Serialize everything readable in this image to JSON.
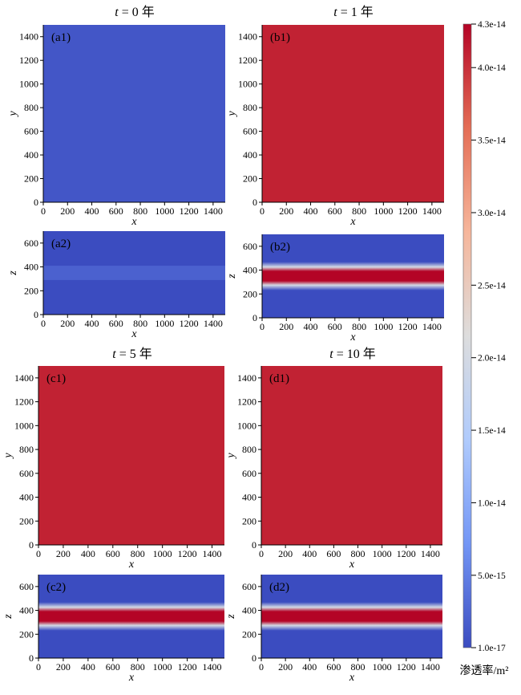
{
  "chart_data": {
    "type": "heatmap",
    "colorbar": {
      "label": "渗透率/m²",
      "min": 1e-17,
      "max": 4.3e-14,
      "ticks": [
        {
          "value": 4.3e-14,
          "label": "4.3e-14"
        },
        {
          "value": 4e-14,
          "label": "4.0e-14"
        },
        {
          "value": 3.5e-14,
          "label": "3.5e-14"
        },
        {
          "value": 3e-14,
          "label": "3.0e-14"
        },
        {
          "value": 2.5e-14,
          "label": "2.5e-14"
        },
        {
          "value": 2e-14,
          "label": "2.0e-14"
        },
        {
          "value": 1.5e-14,
          "label": "1.5e-14"
        },
        {
          "value": 1e-14,
          "label": "1.0e-14"
        },
        {
          "value": 5e-15,
          "label": "5.0e-15"
        },
        {
          "value": 1e-17,
          "label": "1.0e-17"
        }
      ],
      "colormap": [
        "#3b4cc0",
        "#7396f5",
        "#b0cbfc",
        "#dddddd",
        "#f6b69b",
        "#e46e56",
        "#b40426"
      ]
    },
    "column_titles": [
      {
        "t": "t",
        "rest": " = 0 年"
      },
      {
        "t": "t",
        "rest": " = 1 年"
      },
      {
        "t": "t",
        "rest": " = 5 年"
      },
      {
        "t": "t",
        "rest": " = 10 年"
      }
    ],
    "panels": [
      {
        "id": "a1",
        "label": "(a1)",
        "view": "xy",
        "xlabel": "x",
        "ylabel": "y",
        "xlim": [
          0,
          1500
        ],
        "ylim": [
          0,
          1500
        ],
        "xticks": [
          0,
          200,
          400,
          600,
          800,
          1000,
          1200,
          1400
        ],
        "yticks": [
          0,
          200,
          400,
          600,
          800,
          1000,
          1200,
          1400
        ],
        "field": {
          "uniform": 1e-15
        }
      },
      {
        "id": "b1",
        "label": "(b1)",
        "view": "xy",
        "xlabel": "x",
        "ylabel": "y",
        "xlim": [
          0,
          1500
        ],
        "ylim": [
          0,
          1500
        ],
        "xticks": [
          0,
          200,
          400,
          600,
          800,
          1000,
          1200,
          1400
        ],
        "yticks": [
          0,
          200,
          400,
          600,
          800,
          1000,
          1200,
          1400
        ],
        "field": {
          "uniform": 4.1e-14
        }
      },
      {
        "id": "a2",
        "label": "(a2)",
        "view": "xz",
        "xlabel": "x",
        "ylabel": "z",
        "xlim": [
          0,
          1500
        ],
        "ylim": [
          0,
          700
        ],
        "xticks": [
          0,
          200,
          400,
          600,
          800,
          1000,
          1200,
          1400
        ],
        "yticks": [
          0,
          200,
          400,
          600
        ],
        "field": {
          "background": 1e-17,
          "layers": [
            {
              "z0": 290,
              "z1": 410,
              "value": 2e-15
            }
          ]
        }
      },
      {
        "id": "b2",
        "label": "(b2)",
        "view": "xz",
        "xlabel": "x",
        "ylabel": "z",
        "xlim": [
          0,
          1500
        ],
        "ylim": [
          0,
          700
        ],
        "xticks": [
          0,
          200,
          400,
          600,
          800,
          1000,
          1200,
          1400
        ],
        "yticks": [
          0,
          200,
          400,
          600
        ],
        "field": {
          "background": 1e-17,
          "band": {
            "center": 350,
            "core": 40,
            "halo": 80,
            "peak": 4.3e-14
          }
        }
      },
      {
        "id": "c1",
        "label": "(c1)",
        "view": "xy",
        "xlabel": "x",
        "ylabel": "y",
        "xlim": [
          0,
          1500
        ],
        "ylim": [
          0,
          1500
        ],
        "xticks": [
          0,
          200,
          400,
          600,
          800,
          1000,
          1200,
          1400
        ],
        "yticks": [
          0,
          200,
          400,
          600,
          800,
          1000,
          1200,
          1400
        ],
        "field": {
          "uniform": 4.1e-14
        }
      },
      {
        "id": "d1",
        "label": "(d1)",
        "view": "xy",
        "xlabel": "x",
        "ylabel": "y",
        "xlim": [
          0,
          1500
        ],
        "ylim": [
          0,
          1500
        ],
        "xticks": [
          0,
          200,
          400,
          600,
          800,
          1000,
          1200,
          1400
        ],
        "yticks": [
          0,
          200,
          400,
          600,
          800,
          1000,
          1200,
          1400
        ],
        "field": {
          "uniform": 4.1e-14
        }
      },
      {
        "id": "c2",
        "label": "(c2)",
        "view": "xz",
        "xlabel": "x",
        "ylabel": "z",
        "xlim": [
          0,
          1500
        ],
        "ylim": [
          0,
          700
        ],
        "xticks": [
          0,
          200,
          400,
          600,
          800,
          1000,
          1200,
          1400
        ],
        "yticks": [
          0,
          200,
          400,
          600
        ],
        "field": {
          "background": 1e-17,
          "band": {
            "center": 350,
            "core": 40,
            "halo": 80,
            "peak": 4.3e-14
          }
        }
      },
      {
        "id": "d2",
        "label": "(d2)",
        "view": "xz",
        "xlabel": "x",
        "ylabel": "z",
        "xlim": [
          0,
          1500
        ],
        "ylim": [
          0,
          700
        ],
        "xticks": [
          0,
          200,
          400,
          600,
          800,
          1000,
          1200,
          1400
        ],
        "yticks": [
          0,
          200,
          400,
          600
        ],
        "field": {
          "background": 1e-17,
          "band": {
            "center": 350,
            "core": 40,
            "halo": 80,
            "peak": 4.3e-14
          }
        }
      }
    ]
  }
}
